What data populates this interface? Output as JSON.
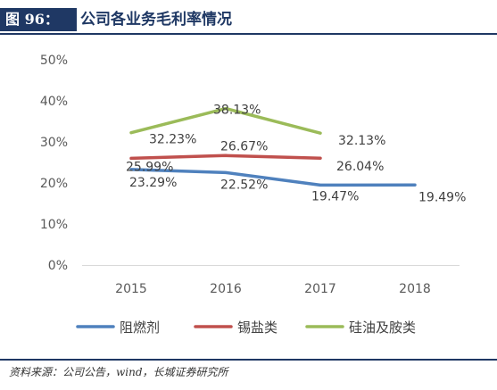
{
  "figure": {
    "label": "图 96：",
    "title": "公司各业务毛利率情况"
  },
  "source": "资料来源：公司公告，wind，长城证券研究所",
  "chart_data": {
    "type": "line",
    "categories": [
      "2015",
      "2016",
      "2017",
      "2018"
    ],
    "ylim": [
      0,
      50
    ],
    "yticks": [
      "0%",
      "10%",
      "20%",
      "30%",
      "40%",
      "50%"
    ],
    "grid": false,
    "legend_position": "bottom",
    "series": [
      {
        "name": "阻燃剂",
        "color": "#4f81bd",
        "values": [
          23.29,
          22.52,
          19.47,
          19.49
        ],
        "labels": [
          "23.29%",
          "22.52%",
          "19.47%",
          "19.49%"
        ]
      },
      {
        "name": "锡盐类",
        "color": "#c0504d",
        "values": [
          25.99,
          26.67,
          26.04,
          null
        ],
        "labels": [
          "25.99%",
          "26.67%",
          "26.04%",
          null
        ]
      },
      {
        "name": "硅油及胺类",
        "color": "#9bbb59",
        "values": [
          32.23,
          38.13,
          32.13,
          null
        ],
        "labels": [
          "32.23%",
          "38.13%",
          "32.13%",
          null
        ]
      }
    ]
  }
}
